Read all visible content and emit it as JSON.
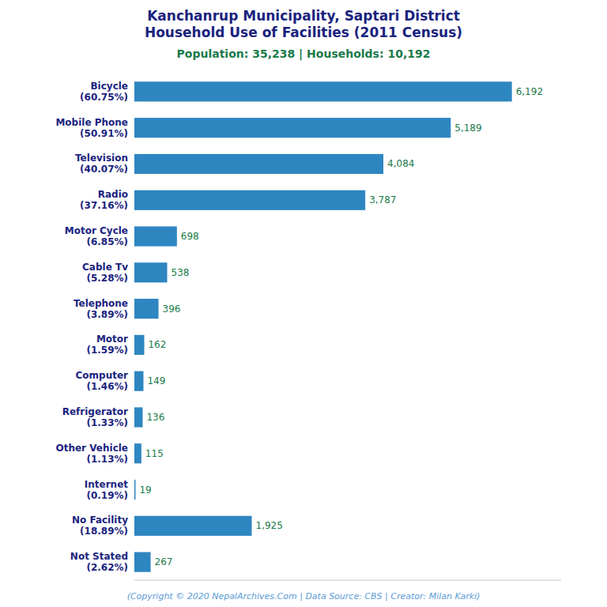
{
  "chart_data": {
    "type": "bar",
    "orientation": "horizontal",
    "title": "Kanchanrup Municipality, Saptari District\nHousehold Use of Facilities (2011 Census)",
    "subtitle": "Population: 35,238 | Households: 10,192",
    "annotations": [
      "(Copyright © 2020 NepalArchives.Com | Data Source: CBS | Creator: Milan Karki)"
    ],
    "categories": [
      "Bicycle\n(60.75%)",
      "Mobile Phone\n(50.91%)",
      "Television\n(40.07%)",
      "Radio\n(37.16%)",
      "Motor Cycle\n(6.85%)",
      "Cable Tv\n(5.28%)",
      "Telephone\n(3.89%)",
      "Motor\n(1.59%)",
      "Computer\n(1.46%)",
      "Refrigerator\n(1.33%)",
      "Other Vehicle\n(1.13%)",
      "Internet\n(0.19%)",
      "No Facility\n(18.89%)",
      "Not Stated\n(2.62%)"
    ],
    "values": [
      6192,
      5189,
      4084,
      3787,
      698,
      538,
      396,
      162,
      149,
      136,
      115,
      19,
      1925,
      267
    ],
    "value_labels": [
      "6,192",
      "5,189",
      "4,084",
      "3,787",
      "698",
      "538",
      "396",
      "162",
      "149",
      "136",
      "115",
      "19",
      "1,925",
      "267"
    ],
    "color": "#2e86c1",
    "xlim": [
      0,
      7000
    ],
    "data_labels": true,
    "tick_labels": "y",
    "grid": false
  }
}
